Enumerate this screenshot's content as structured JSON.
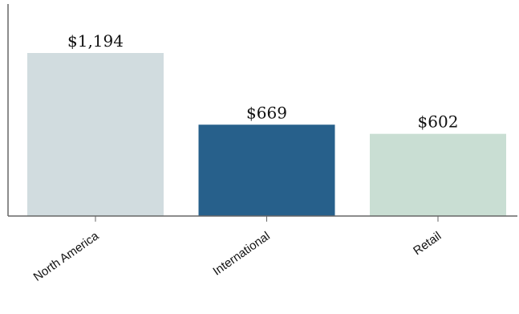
{
  "chart_data": {
    "type": "bar",
    "categories": [
      "North America",
      "International",
      "Retail"
    ],
    "values": [
      1194,
      669,
      602
    ],
    "value_labels": [
      "$1,194",
      "$669",
      "$602"
    ],
    "colors": [
      "#d1dcdf",
      "#27608b",
      "#c9ded3"
    ],
    "title": "",
    "xlabel": "",
    "ylabel": "",
    "ylim": [
      0,
      1400
    ],
    "grid": false,
    "legend": "none"
  }
}
